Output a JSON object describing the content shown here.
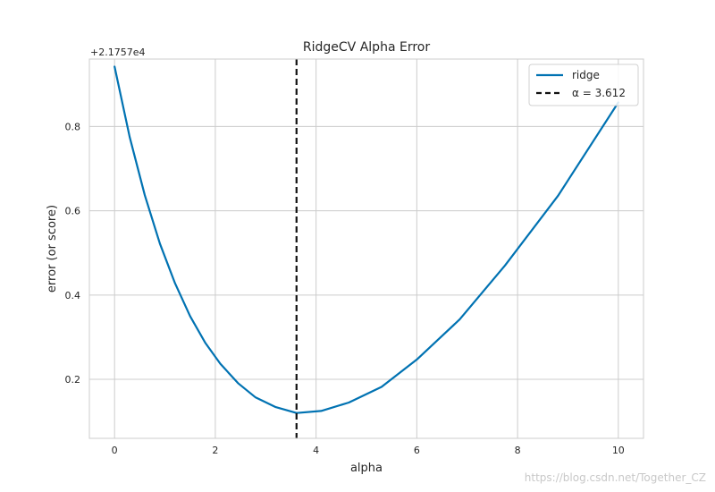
{
  "chart_data": {
    "type": "line",
    "title": "RidgeCV Alpha Error",
    "xlabel": "alpha",
    "ylabel": "error (or score)",
    "offset_text": "+2.1757e4",
    "xlim": [
      -0.5,
      10.5
    ],
    "ylim": [
      0.06,
      0.96
    ],
    "xticks": [
      0,
      2,
      4,
      6,
      8,
      10
    ],
    "xtick_labels": [
      "0",
      "2",
      "4",
      "6",
      "8",
      "10"
    ],
    "yticks": [
      0.2,
      0.4,
      0.6,
      0.8
    ],
    "ytick_labels": [
      "0.2",
      "0.4",
      "0.6",
      "0.8"
    ],
    "grid": true,
    "legend_position": "top-right",
    "series": [
      {
        "name": "ridge",
        "color": "#0072b2",
        "x": [
          0.0,
          0.3,
          0.6,
          0.9,
          1.2,
          1.5,
          1.8,
          2.1,
          2.45,
          2.8,
          3.2,
          3.612,
          4.1,
          4.65,
          5.3,
          6.0,
          6.85,
          7.75,
          8.8,
          10.0
        ],
        "y": [
          0.942,
          0.775,
          0.637,
          0.522,
          0.428,
          0.35,
          0.287,
          0.237,
          0.191,
          0.157,
          0.134,
          0.12,
          0.125,
          0.145,
          0.182,
          0.247,
          0.342,
          0.47,
          0.635,
          0.857
        ]
      }
    ],
    "vline": {
      "x": 3.612,
      "label": "α = 3.612",
      "color": "#111111"
    }
  },
  "watermark": "https://blog.csdn.net/Together_CZ"
}
